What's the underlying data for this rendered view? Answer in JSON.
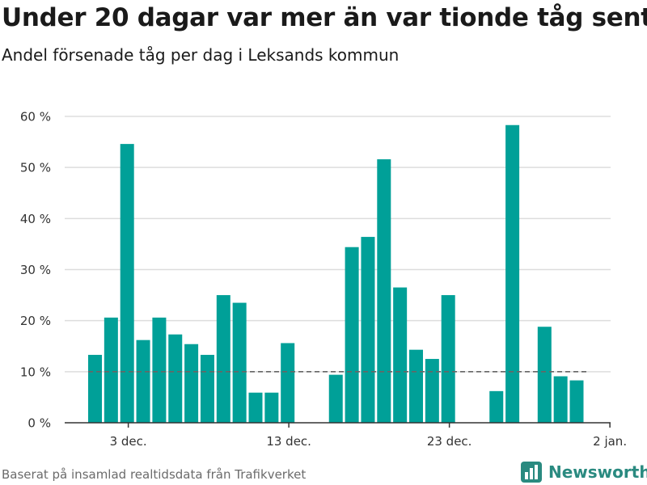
{
  "header": {
    "title": "Under 20 dagar var mer än var tionde tåg sent",
    "subtitle": "Andel försenade tåg per dag i Leksands kommun"
  },
  "footer": {
    "source": "Baserat på insamlad realtidsdata från Trafikverket",
    "brand": "Newsworthy"
  },
  "colors": {
    "bar": "#00a098",
    "reference_line": "#666666",
    "grid": "#dddddd",
    "brand": "#2a8a80"
  },
  "icons": {
    "brand": "bar-chart-icon"
  },
  "chart_data": {
    "type": "bar",
    "x_type": "date",
    "categories": [
      "1 dec.",
      "2 dec.",
      "3 dec.",
      "4 dec.",
      "5 dec.",
      "6 dec.",
      "7 dec.",
      "8 dec.",
      "9 dec.",
      "10 dec.",
      "11 dec.",
      "12 dec.",
      "13 dec.",
      "14 dec.",
      "15 dec.",
      "16 dec.",
      "17 dec.",
      "18 dec.",
      "19 dec.",
      "20 dec.",
      "21 dec.",
      "22 dec.",
      "23 dec.",
      "24 dec.",
      "25 dec.",
      "26 dec.",
      "27 dec.",
      "28 dec.",
      "29 dec.",
      "30 dec.",
      "31 dec."
    ],
    "values": [
      13.3,
      20.6,
      54.6,
      16.2,
      20.6,
      17.3,
      15.4,
      13.3,
      25.0,
      23.5,
      5.9,
      5.9,
      15.6,
      null,
      null,
      9.4,
      34.4,
      36.4,
      51.6,
      26.5,
      14.3,
      12.5,
      25.0,
      null,
      null,
      6.2,
      58.3,
      null,
      18.8,
      9.1,
      8.3
    ],
    "reference_value": 10,
    "x_ticks": [
      "3 dec.",
      "13 dec.",
      "23 dec.",
      "2 jan."
    ],
    "x_tick_positions": [
      "3 dec.",
      "13 dec.",
      "23 dec.",
      "2 jan."
    ],
    "y_ticks": [
      "0 %",
      "10 %",
      "20 %",
      "30 %",
      "40 %",
      "50 %",
      "60 %"
    ],
    "ylim": [
      0,
      60
    ],
    "grid": true,
    "legend": "none"
  }
}
